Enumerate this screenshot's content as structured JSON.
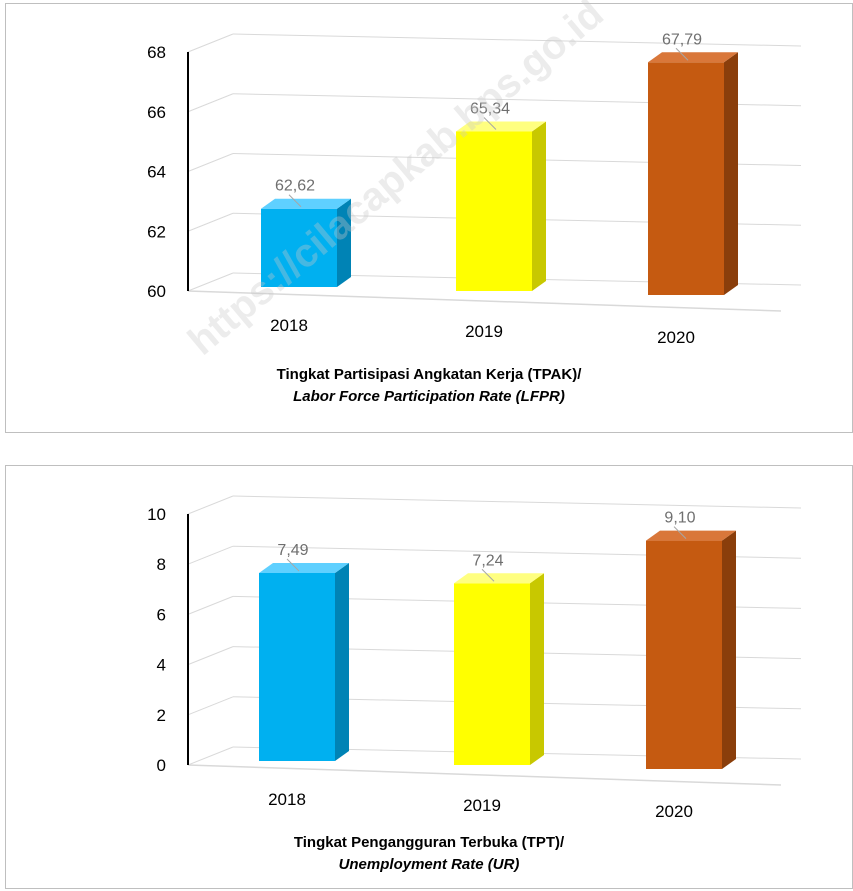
{
  "watermark": "https://cilacapkab.bps.go.id",
  "chart_data": [
    {
      "type": "bar",
      "categories": [
        "2018",
        "2019",
        "2020"
      ],
      "values": [
        62.62,
        65.34,
        67.79
      ],
      "data_labels": [
        "62,62",
        "65,34",
        "67,79"
      ],
      "y_ticks": [
        "60",
        "62",
        "64",
        "66",
        "68"
      ],
      "ylim": [
        60,
        68
      ],
      "title": "Tingkat Partisipasi Angkatan Kerja (TPAK)/",
      "subtitle": "Labor Force Participation Rate (LFPR)",
      "grid": true,
      "colors": [
        "#00b0f0",
        "#ffff00",
        "#c55a11"
      ],
      "side_colors": [
        "#0083b5",
        "#c8c800",
        "#8a3e0b"
      ],
      "top_colors": [
        "#5fd0ff",
        "#ffff80",
        "#d9773a"
      ]
    },
    {
      "type": "bar",
      "categories": [
        "2018",
        "2019",
        "2020"
      ],
      "values": [
        7.49,
        7.24,
        9.1
      ],
      "data_labels": [
        "7,49",
        "7,24",
        "9,10"
      ],
      "y_ticks": [
        "0",
        "2",
        "4",
        "6",
        "8",
        "10"
      ],
      "ylim": [
        0,
        10
      ],
      "title": "Tingkat Pengangguran Terbuka (TPT)/",
      "subtitle": "Unemployment Rate (UR)",
      "grid": true,
      "colors": [
        "#00b0f0",
        "#ffff00",
        "#c55a11"
      ],
      "side_colors": [
        "#0083b5",
        "#c8c800",
        "#8a3e0b"
      ],
      "top_colors": [
        "#5fd0ff",
        "#ffff80",
        "#d9773a"
      ]
    }
  ]
}
